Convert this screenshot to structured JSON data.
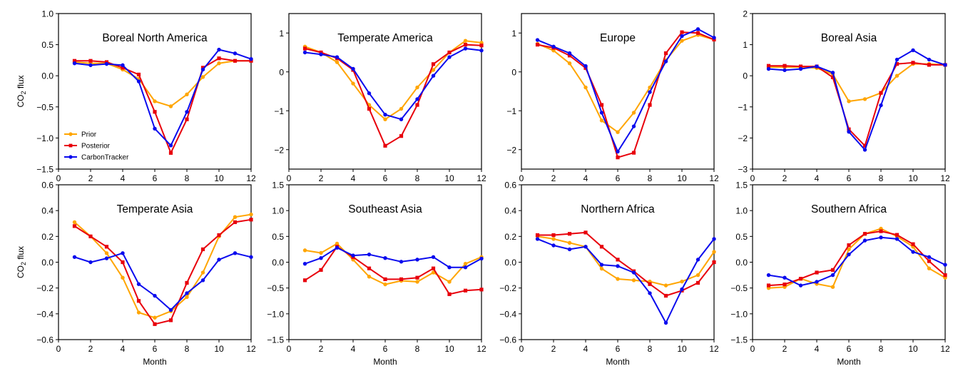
{
  "legend": {
    "entries": [
      {
        "name": "Prior",
        "color": "#FFA500"
      },
      {
        "name": "Posterior",
        "color": "#E8000B"
      },
      {
        "name": "CarbonTracker",
        "color": "#0A0AEE"
      }
    ],
    "placement": "lower-left",
    "in_panel": 0
  },
  "chart_data": [
    {
      "type": "line",
      "title": "Boreal North America",
      "xlabel": "",
      "ylabel": "CO2 flux",
      "xlim": [
        0,
        12
      ],
      "ylim": [
        -1.5,
        1.0
      ],
      "xticks": [
        0,
        2,
        4,
        6,
        8,
        10,
        12
      ],
      "yticks": [
        -1.5,
        -1.0,
        -0.5,
        0.0,
        0.5,
        1.0
      ],
      "ytick_labels": [
        "−1.5",
        "−1.0",
        "−0.5",
        "0.0",
        "0.5",
        "1.0"
      ],
      "x": [
        1,
        2,
        3,
        4,
        5,
        6,
        7,
        8,
        9,
        10,
        11,
        12
      ],
      "series": [
        {
          "name": "Prior",
          "values": [
            0.22,
            0.2,
            0.2,
            0.1,
            -0.05,
            -0.41,
            -0.49,
            -0.3,
            -0.02,
            0.2,
            0.24,
            0.24
          ]
        },
        {
          "name": "Posterior",
          "values": [
            0.24,
            0.24,
            0.22,
            0.13,
            0.02,
            -0.58,
            -1.24,
            -0.7,
            0.13,
            0.28,
            0.24,
            0.24
          ]
        },
        {
          "name": "CarbonTracker",
          "values": [
            0.2,
            0.17,
            0.19,
            0.17,
            -0.09,
            -0.85,
            -1.12,
            -0.58,
            0.1,
            0.42,
            0.36,
            0.27
          ]
        }
      ],
      "grid": false
    },
    {
      "type": "line",
      "title": "Temperate America",
      "xlabel": "",
      "ylabel": "",
      "xlim": [
        0,
        12
      ],
      "ylim": [
        -2.5,
        1.5
      ],
      "xticks": [
        0,
        2,
        4,
        6,
        8,
        10,
        12
      ],
      "yticks": [
        -2,
        -1,
        0,
        1
      ],
      "ytick_labels": [
        "−2",
        "−1",
        "0",
        "1"
      ],
      "x": [
        1,
        2,
        3,
        4,
        5,
        6,
        7,
        8,
        9,
        10,
        11,
        12
      ],
      "series": [
        {
          "name": "Prior",
          "values": [
            0.65,
            0.5,
            0.25,
            -0.3,
            -0.85,
            -1.22,
            -0.95,
            -0.4,
            0.05,
            0.5,
            0.8,
            0.75
          ]
        },
        {
          "name": "Posterior",
          "values": [
            0.6,
            0.5,
            0.35,
            0.05,
            -0.95,
            -1.9,
            -1.65,
            -0.85,
            0.2,
            0.5,
            0.7,
            0.68
          ]
        },
        {
          "name": "CarbonTracker",
          "values": [
            0.5,
            0.45,
            0.38,
            0.08,
            -0.55,
            -1.1,
            -1.22,
            -0.7,
            -0.1,
            0.38,
            0.6,
            0.55
          ]
        }
      ],
      "grid": false
    },
    {
      "type": "line",
      "title": "Europe",
      "xlabel": "",
      "ylabel": "",
      "xlim": [
        0,
        12
      ],
      "ylim": [
        -2.5,
        1.5
      ],
      "xticks": [
        0,
        2,
        4,
        6,
        8,
        10,
        12
      ],
      "yticks": [
        -2,
        -1,
        0,
        1
      ],
      "ytick_labels": [
        "−2",
        "−1",
        "0",
        "1"
      ],
      "x": [
        1,
        2,
        3,
        4,
        5,
        6,
        7,
        8,
        9,
        10,
        11,
        12
      ],
      "series": [
        {
          "name": "Prior",
          "values": [
            0.72,
            0.55,
            0.22,
            -0.4,
            -1.25,
            -1.55,
            -1.05,
            -0.4,
            0.3,
            0.8,
            0.95,
            0.83
          ]
        },
        {
          "name": "Posterior",
          "values": [
            0.7,
            0.62,
            0.42,
            0.1,
            -0.85,
            -2.2,
            -2.08,
            -0.85,
            0.48,
            1.02,
            1.0,
            0.83
          ]
        },
        {
          "name": "CarbonTracker",
          "values": [
            0.82,
            0.65,
            0.48,
            0.15,
            -1.05,
            -2.05,
            -1.4,
            -0.52,
            0.27,
            0.92,
            1.1,
            0.88
          ]
        }
      ],
      "grid": false
    },
    {
      "type": "line",
      "title": "Boreal Asia",
      "xlabel": "",
      "ylabel": "",
      "xlim": [
        0,
        12
      ],
      "ylim": [
        -3,
        2
      ],
      "xticks": [
        0,
        2,
        4,
        6,
        8,
        10,
        12
      ],
      "yticks": [
        -3,
        -2,
        -1,
        0,
        1,
        2
      ],
      "ytick_labels": [
        "−3",
        "−2",
        "−1",
        "0",
        "1",
        "2"
      ],
      "x": [
        1,
        2,
        3,
        4,
        5,
        6,
        7,
        8,
        9,
        10,
        11,
        12
      ],
      "series": [
        {
          "name": "Prior",
          "values": [
            0.28,
            0.28,
            0.28,
            0.25,
            0.05,
            -0.82,
            -0.75,
            -0.55,
            0.0,
            0.38,
            0.38,
            0.35
          ]
        },
        {
          "name": "Posterior",
          "values": [
            0.32,
            0.32,
            0.3,
            0.3,
            -0.05,
            -1.72,
            -2.25,
            -0.55,
            0.38,
            0.42,
            0.35,
            0.35
          ]
        },
        {
          "name": "CarbonTracker",
          "values": [
            0.22,
            0.18,
            0.22,
            0.3,
            0.1,
            -1.8,
            -2.38,
            -0.95,
            0.52,
            0.82,
            0.52,
            0.35
          ]
        }
      ],
      "grid": false
    },
    {
      "type": "line",
      "title": "Temperate Asia",
      "xlabel": "Month",
      "ylabel": "CO2 flux",
      "xlim": [
        0,
        12
      ],
      "ylim": [
        -0.6,
        0.6
      ],
      "xticks": [
        0,
        2,
        4,
        6,
        8,
        10,
        12
      ],
      "yticks": [
        -0.6,
        -0.4,
        -0.2,
        0.0,
        0.2,
        0.4,
        0.6
      ],
      "ytick_labels": [
        "−0.6",
        "−0.4",
        "−0.2",
        "0.0",
        "0.2",
        "0.4",
        "0.6"
      ],
      "x": [
        1,
        2,
        3,
        4,
        5,
        6,
        7,
        8,
        9,
        10,
        11,
        12
      ],
      "series": [
        {
          "name": "Prior",
          "values": [
            0.31,
            0.2,
            0.07,
            -0.12,
            -0.39,
            -0.43,
            -0.38,
            -0.27,
            -0.08,
            0.2,
            0.35,
            0.37
          ]
        },
        {
          "name": "Posterior",
          "values": [
            0.28,
            0.2,
            0.12,
            0.0,
            -0.3,
            -0.48,
            -0.45,
            -0.16,
            0.1,
            0.21,
            0.31,
            0.33
          ]
        },
        {
          "name": "CarbonTracker",
          "values": [
            0.04,
            0.0,
            0.03,
            0.07,
            -0.17,
            -0.26,
            -0.37,
            -0.24,
            -0.14,
            0.02,
            0.07,
            0.04
          ]
        }
      ],
      "grid": false
    },
    {
      "type": "line",
      "title": "Southeast Asia",
      "xlabel": "Month",
      "ylabel": "",
      "xlim": [
        0,
        12
      ],
      "ylim": [
        -1.5,
        1.5
      ],
      "xticks": [
        0,
        2,
        4,
        6,
        8,
        10,
        12
      ],
      "yticks": [
        -1.5,
        -1.0,
        -0.5,
        0.0,
        0.5,
        1.0,
        1.5
      ],
      "ytick_labels": [
        "−1.5",
        "−1.0",
        "−0.5",
        "0.0",
        "0.5",
        "1.0",
        "1.5"
      ],
      "x": [
        1,
        2,
        3,
        4,
        5,
        6,
        7,
        8,
        9,
        10,
        11,
        12
      ],
      "series": [
        {
          "name": "Prior",
          "values": [
            0.23,
            0.18,
            0.36,
            0.05,
            -0.28,
            -0.43,
            -0.36,
            -0.38,
            -0.2,
            -0.38,
            -0.03,
            0.1
          ]
        },
        {
          "name": "Posterior",
          "values": [
            -0.35,
            -0.15,
            0.3,
            0.1,
            -0.12,
            -0.33,
            -0.33,
            -0.3,
            -0.12,
            -0.62,
            -0.55,
            -0.53
          ]
        },
        {
          "name": "CarbonTracker",
          "values": [
            -0.03,
            0.08,
            0.28,
            0.13,
            0.15,
            0.08,
            0.01,
            0.05,
            0.1,
            -0.1,
            -0.1,
            0.07
          ]
        }
      ],
      "grid": false
    },
    {
      "type": "line",
      "title": "Northern  Africa",
      "xlabel": "Month",
      "ylabel": "",
      "xlim": [
        0,
        12
      ],
      "ylim": [
        -0.6,
        0.6
      ],
      "xticks": [
        0,
        2,
        4,
        6,
        8,
        10,
        12
      ],
      "yticks": [
        -0.6,
        -0.4,
        -0.2,
        0.0,
        0.2,
        0.4,
        0.6
      ],
      "ytick_labels": [
        "−0.6",
        "−0.4",
        "−0.2",
        "0.0",
        "0.2",
        "0.4",
        "0.6"
      ],
      "x": [
        1,
        2,
        3,
        4,
        5,
        6,
        7,
        8,
        9,
        10,
        11,
        12
      ],
      "series": [
        {
          "name": "Prior",
          "values": [
            0.2,
            0.18,
            0.15,
            0.12,
            -0.05,
            -0.13,
            -0.14,
            -0.15,
            -0.18,
            -0.15,
            -0.1,
            0.08
          ]
        },
        {
          "name": "Posterior",
          "values": [
            0.21,
            0.21,
            0.22,
            0.23,
            0.12,
            0.02,
            -0.07,
            -0.17,
            -0.26,
            -0.22,
            -0.16,
            0.0
          ]
        },
        {
          "name": "CarbonTracker",
          "values": [
            0.18,
            0.13,
            0.1,
            0.12,
            -0.02,
            -0.03,
            -0.08,
            -0.24,
            -0.47,
            -0.21,
            0.02,
            0.18
          ]
        }
      ],
      "grid": false
    },
    {
      "type": "line",
      "title": "Southern  Africa",
      "xlabel": "Month",
      "ylabel": "",
      "xlim": [
        0,
        12
      ],
      "ylim": [
        -1.5,
        1.5
      ],
      "xticks": [
        0,
        2,
        4,
        6,
        8,
        10,
        12
      ],
      "yticks": [
        -1.5,
        -1.0,
        -0.5,
        0.0,
        0.5,
        1.0,
        1.5
      ],
      "ytick_labels": [
        "−1.5",
        "−1.0",
        "−0.5",
        "0.0",
        "0.5",
        "1.0",
        "1.5"
      ],
      "x": [
        1,
        2,
        3,
        4,
        5,
        6,
        7,
        8,
        9,
        10,
        11,
        12
      ],
      "series": [
        {
          "name": "Prior",
          "values": [
            -0.5,
            -0.48,
            -0.32,
            -0.42,
            -0.48,
            0.25,
            0.55,
            0.65,
            0.5,
            0.3,
            -0.12,
            -0.3
          ]
        },
        {
          "name": "Posterior",
          "values": [
            -0.45,
            -0.43,
            -0.32,
            -0.2,
            -0.15,
            0.33,
            0.55,
            0.6,
            0.53,
            0.35,
            0.02,
            -0.25
          ]
        },
        {
          "name": "CarbonTracker",
          "values": [
            -0.25,
            -0.3,
            -0.45,
            -0.38,
            -0.25,
            0.15,
            0.42,
            0.48,
            0.45,
            0.2,
            0.1,
            -0.05
          ]
        }
      ],
      "grid": false
    }
  ]
}
